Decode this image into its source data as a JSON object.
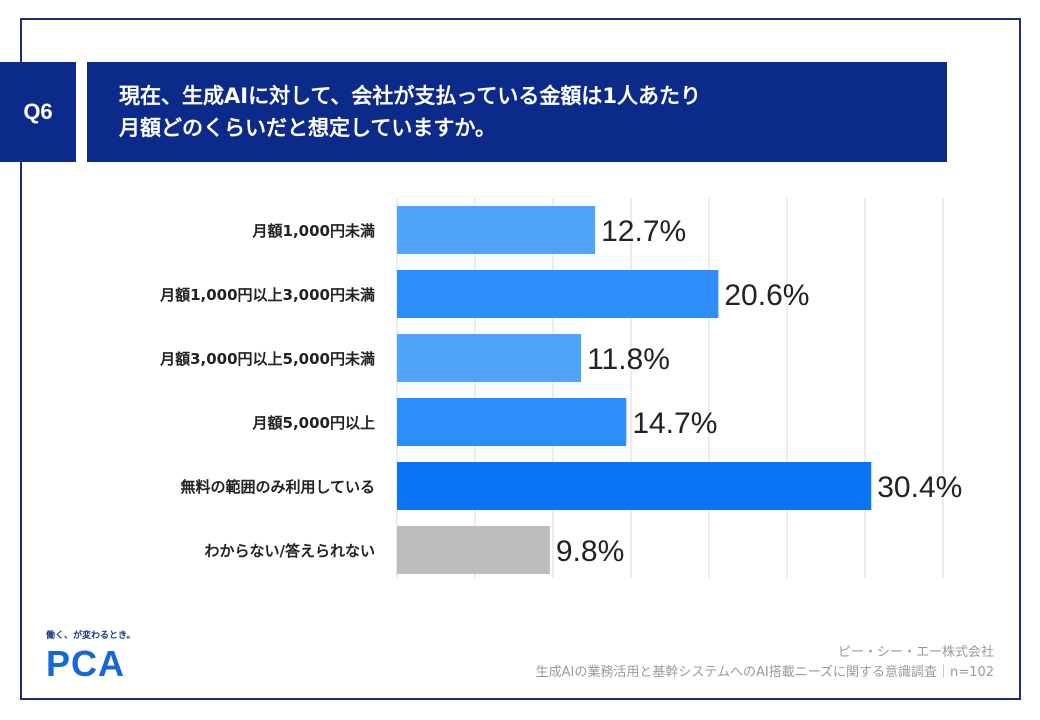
{
  "header": {
    "q_label": "Q6",
    "title": "現在、生成AIに対して、会社が支払っている金額は1人あたり\n月額どのくらいだと想定していますか。"
  },
  "chart_data": {
    "type": "bar",
    "orientation": "horizontal",
    "categories": [
      "月額1,000円未満",
      "月額1,000円以上3,000円未満",
      "月額3,000円以上5,000円未満",
      "月額5,000円以上",
      "無料の範囲のみ利用している",
      "わからない/答えられない"
    ],
    "values": [
      12.7,
      20.6,
      11.8,
      14.7,
      30.4,
      9.8
    ],
    "value_labels": [
      "12.7%",
      "20.6%",
      "11.8%",
      "14.7%",
      "30.4%",
      "9.8%"
    ],
    "colors": [
      "#4ea3fb",
      "#2e8df8",
      "#4ea3fb",
      "#2e8df8",
      "#0a74f5",
      "#bdbdbd"
    ],
    "xlim": [
      0,
      35
    ],
    "grid": true,
    "title": "",
    "xlabel": "",
    "ylabel": ""
  },
  "footer": {
    "tagline": "働く、が変わるとき。",
    "logo_text": "PCA",
    "company": "ピー・シー・エー株式会社",
    "survey": "生成AIの業務活用と基幹システムへのAI搭載ニーズに関する意識調査｜n=102"
  }
}
